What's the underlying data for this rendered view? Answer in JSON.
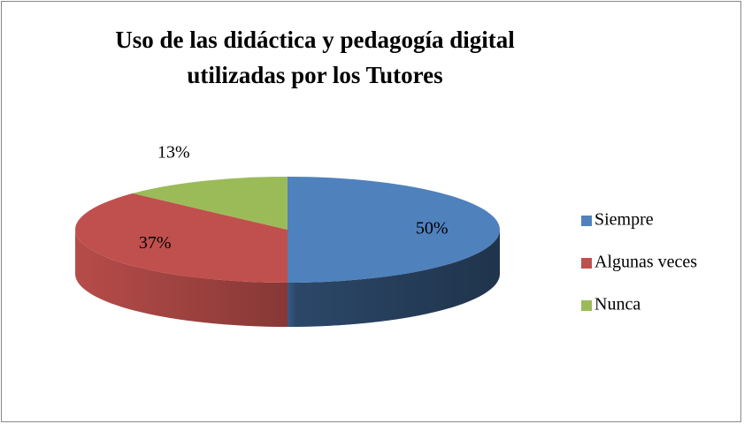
{
  "chart_data": {
    "type": "pie3d",
    "title": [
      "Uso de las didáctica y pedagogía digital",
      "utilizadas por los Tutores"
    ],
    "categories": [
      "Siempre",
      "Algunas veces",
      "Nunca"
    ],
    "values": [
      50,
      37,
      13
    ],
    "value_labels": [
      "50%",
      "37%",
      "13%"
    ],
    "colors": [
      "#4f81bd",
      "#c0504d",
      "#9bbb59"
    ],
    "legend": "right"
  }
}
